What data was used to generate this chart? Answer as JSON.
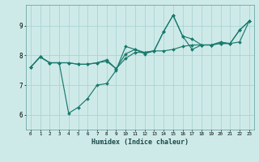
{
  "xlabel": "Humidex (Indice chaleur)",
  "bg_color": "#ceeae8",
  "grid_color": "#aad4d2",
  "line_color": "#1a7a6e",
  "x": [
    0,
    1,
    2,
    3,
    4,
    5,
    6,
    7,
    8,
    9,
    10,
    11,
    12,
    13,
    14,
    15,
    16,
    17,
    18,
    19,
    20,
    21,
    22,
    23
  ],
  "line1": [
    7.6,
    7.95,
    7.75,
    7.75,
    6.05,
    6.25,
    6.55,
    7.0,
    7.05,
    7.5,
    8.3,
    8.2,
    8.1,
    8.15,
    8.8,
    9.35,
    8.65,
    8.55,
    8.35,
    8.35,
    8.45,
    8.4,
    8.85,
    9.15
  ],
  "line2": [
    7.6,
    7.95,
    7.75,
    7.75,
    7.75,
    7.7,
    7.7,
    7.75,
    7.8,
    7.55,
    7.9,
    8.1,
    8.1,
    8.15,
    8.15,
    8.2,
    8.3,
    8.35,
    8.35,
    8.35,
    8.4,
    8.4,
    8.45,
    9.15
  ],
  "line3": [
    7.6,
    7.95,
    7.75,
    7.75,
    7.75,
    7.7,
    7.7,
    7.75,
    7.85,
    7.55,
    8.05,
    8.2,
    8.05,
    8.15,
    8.8,
    9.35,
    8.65,
    8.2,
    8.35,
    8.35,
    8.4,
    8.4,
    8.85,
    9.15
  ],
  "ylim": [
    5.5,
    9.7
  ],
  "yticks": [
    6,
    7,
    8,
    9
  ],
  "xticks": [
    0,
    1,
    2,
    3,
    4,
    5,
    6,
    7,
    8,
    9,
    10,
    11,
    12,
    13,
    14,
    15,
    16,
    17,
    18,
    19,
    20,
    21,
    22,
    23
  ]
}
